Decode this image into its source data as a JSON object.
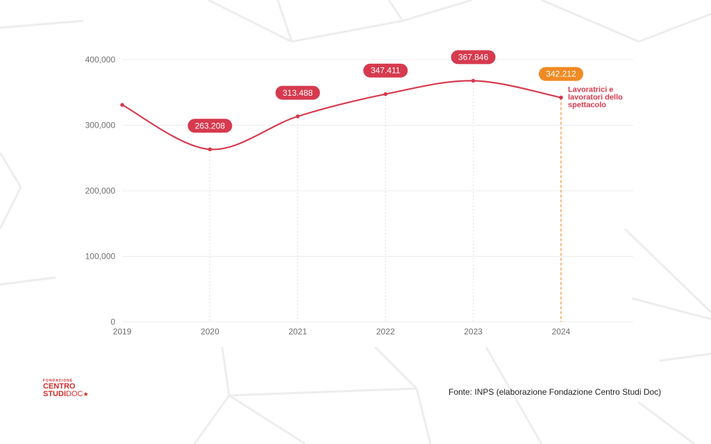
{
  "colors": {
    "series": "#d63a4e",
    "highlight": "#f08a24",
    "grid": "#ececec",
    "axis_text": "#6e6e6e"
  },
  "logo": {
    "line1": "FONDAZIONE",
    "line2": "CENTRO",
    "line3a": "STUDI",
    "line3b": "DOC",
    "star": "★"
  },
  "source": "Fonte: INPS (elaborazione Fondazione Centro Studi Doc)",
  "chart_data": {
    "type": "line",
    "title": "",
    "xlabel": "",
    "ylabel": "",
    "x": [
      "2019",
      "2020",
      "2021",
      "2022",
      "2023",
      "2024"
    ],
    "ylim": [
      0,
      400000
    ],
    "yticks": [
      0,
      100000,
      200000,
      300000,
      400000
    ],
    "ytick_labels": [
      "0",
      "100,000",
      "200,000",
      "300,000",
      "400,000"
    ],
    "grid": true,
    "legend": "none",
    "series": [
      {
        "name": "Lavoratrici e lavoratori dello spettacolo",
        "name_lines": [
          "Lavoratrici e",
          "lavoratori dello",
          "spettacolo"
        ],
        "values": [
          331000,
          263208,
          313488,
          347411,
          367846,
          342212
        ],
        "value_labels": [
          "",
          "263.208",
          "313.488",
          "347.411",
          "367.846",
          "342.212"
        ],
        "highlight_index": 5
      }
    ]
  }
}
